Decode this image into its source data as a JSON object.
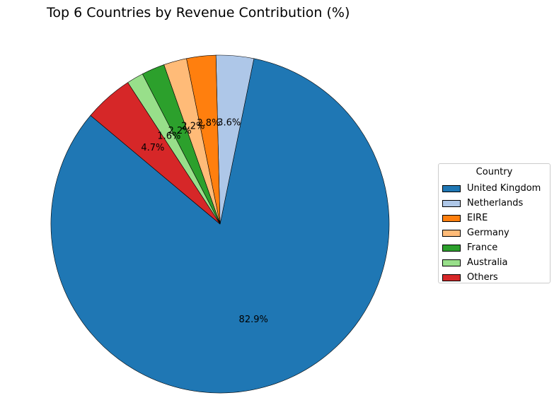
{
  "chart_data": {
    "type": "pie",
    "title": "Top 6 Countries by Revenue Contribution (%)",
    "legend_title": "Country",
    "legend_position": "right",
    "start_angle_deg": 140,
    "direction": "counterclockwise",
    "slices": [
      {
        "name": "United Kingdom",
        "value": 82.9,
        "label": "82.9%",
        "color": "#1f77b4"
      },
      {
        "name": "Netherlands",
        "value": 3.6,
        "label": "3.6%",
        "color": "#aec7e8"
      },
      {
        "name": "EIRE",
        "value": 2.8,
        "label": "2.8%",
        "color": "#ff7f0e"
      },
      {
        "name": "Germany",
        "value": 2.2,
        "label": "2.2%",
        "color": "#ffbb78"
      },
      {
        "name": "France",
        "value": 2.2,
        "label": "2.2%",
        "color": "#2ca02c"
      },
      {
        "name": "Australia",
        "value": 1.6,
        "label": "1.6%",
        "color": "#98df8a"
      },
      {
        "name": "Others",
        "value": 4.7,
        "label": "4.7%",
        "color": "#d62728"
      }
    ]
  }
}
